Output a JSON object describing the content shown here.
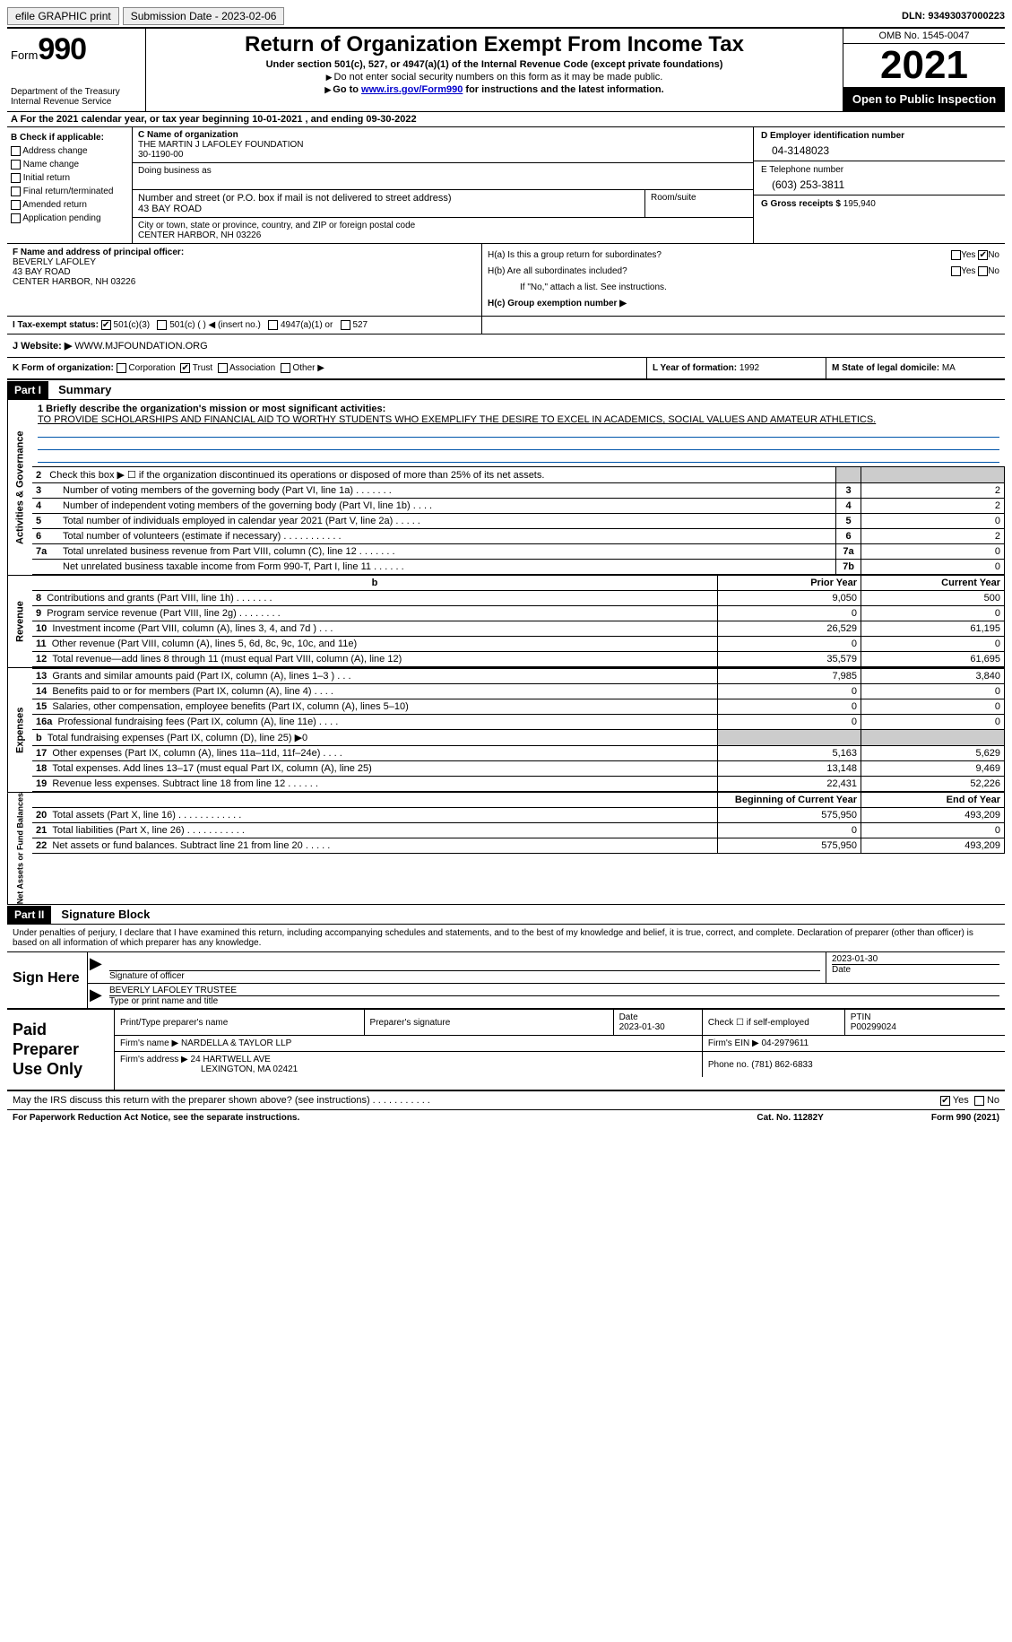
{
  "topbar": {
    "efile_label": "efile GRAPHIC print",
    "submission_label": "Submission Date - 2023-02-06",
    "dln_label": "DLN: 93493037000223"
  },
  "header": {
    "form_label": "Form",
    "form_no": "990",
    "dept": "Department of the Treasury Internal Revenue Service",
    "title": "Return of Organization Exempt From Income Tax",
    "subtitle": "Under section 501(c), 527, or 4947(a)(1) of the Internal Revenue Code (except private foundations)",
    "note1": "Do not enter social security numbers on this form as it may be made public.",
    "note2_a": "Go to ",
    "note2_link": "www.irs.gov/Form990",
    "note2_b": " for instructions and the latest information.",
    "omb": "OMB No. 1545-0047",
    "year": "2021",
    "inspect": "Open to Public Inspection"
  },
  "line_a": "A For the 2021 calendar year, or tax year beginning 10-01-2021    , and ending 09-30-2022",
  "block_b": {
    "title": "B Check if applicable:",
    "items": [
      "Address change",
      "Name change",
      "Initial return",
      "Final return/terminated",
      "Amended return",
      "Application pending"
    ]
  },
  "block_c": {
    "name_lbl": "C Name of organization",
    "name": "THE MARTIN J LAFOLEY FOUNDATION",
    "name2": "30-1190-00",
    "dba_lbl": "Doing business as",
    "addr_lbl": "Number and street (or P.O. box if mail is not delivered to street address)",
    "addr": "43 BAY ROAD",
    "room_lbl": "Room/suite",
    "city_lbl": "City or town, state or province, country, and ZIP or foreign postal code",
    "city": "CENTER HARBOR, NH   03226"
  },
  "block_d": {
    "ein_lbl": "D Employer identification number",
    "ein": "04-3148023",
    "tel_lbl": "E Telephone number",
    "tel": "(603) 253-3811",
    "gross_lbl": "G Gross receipts $",
    "gross": "195,940"
  },
  "block_f": {
    "lbl": "F  Name and address of principal officer:",
    "name": "BEVERLY LAFOLEY",
    "addr1": "43 BAY ROAD",
    "addr2": "CENTER HARBOR, NH  03226"
  },
  "block_h": {
    "ha": "H(a)  Is this a group return for subordinates?",
    "hb": "H(b)  Are all subordinates included?",
    "hb_note": "If \"No,\" attach a list. See instructions.",
    "hc": "H(c)  Group exemption number ▶",
    "yes": "Yes",
    "no": "No"
  },
  "row_i": {
    "lbl": "I    Tax-exempt status:",
    "opts": [
      "501(c)(3)",
      "501(c) (  ) ◀ (insert no.)",
      "4947(a)(1) or",
      "527"
    ]
  },
  "row_j": {
    "lbl": "J   Website: ▶",
    "val": "WWW.MJFOUNDATION.ORG"
  },
  "row_k": {
    "lbl": "K Form of organization:",
    "opts": [
      "Corporation",
      "Trust",
      "Association",
      "Other ▶"
    ],
    "l_lbl": "L Year of formation:",
    "l_val": "1992",
    "m_lbl": "M State of legal domicile:",
    "m_val": "MA"
  },
  "part1": {
    "hdr": "Part I",
    "title": "Summary",
    "side1": "Activities & Governance",
    "side2": "Revenue",
    "side3": "Expenses",
    "side4": "Net Assets or Fund Balances",
    "q1_lbl": "1   Briefly describe the organization's mission or most significant activities:",
    "q1_val": "TO PROVIDE SCHOLARSHIPS AND FINANCIAL AID TO WORTHY STUDENTS WHO EXEMPLIFY THE DESIRE TO EXCEL IN ACADEMICS, SOCIAL VALUES AND AMATEUR ATHLETICS.",
    "q2": "Check this box ▶ ☐  if the organization discontinued its operations or disposed of more than 25% of its net assets.",
    "rows_a": [
      {
        "n": "3",
        "t": "Number of voting members of the governing body (Part VI, line 1a)   .    .    .    .    .    .    .",
        "b": "3",
        "v": "2"
      },
      {
        "n": "4",
        "t": "Number of independent voting members of the governing body (Part VI, line 1b)    .    .    .    .",
        "b": "4",
        "v": "2"
      },
      {
        "n": "5",
        "t": "Total number of individuals employed in calendar year 2021 (Part V, line 2a)    .    .    .    .    .",
        "b": "5",
        "v": "0"
      },
      {
        "n": "6",
        "t": "Total number of volunteers (estimate if necessary)    .    .    .    .    .    .    .    .    .    .    .",
        "b": "6",
        "v": "2"
      },
      {
        "n": "7a",
        "t": "Total unrelated business revenue from Part VIII, column (C), line 12    .    .    .    .    .    .    .",
        "b": "7a",
        "v": "0"
      },
      {
        "n": "",
        "t": "Net unrelated business taxable income from Form 990-T, Part I, line 11    .    .    .    .    .    .",
        "b": "7b",
        "v": "0"
      }
    ],
    "col_prior": "Prior Year",
    "col_curr": "Current Year",
    "rows_b": [
      {
        "n": "8",
        "t": "Contributions and grants (Part VIII, line 1h)    .    .    .    .    .    .    .",
        "p": "9,050",
        "c": "500"
      },
      {
        "n": "9",
        "t": "Program service revenue (Part VIII, line 2g)    .    .    .    .    .    .    .    .",
        "p": "0",
        "c": "0"
      },
      {
        "n": "10",
        "t": "Investment income (Part VIII, column (A), lines 3, 4, and 7d )    .    .    .",
        "p": "26,529",
        "c": "61,195"
      },
      {
        "n": "11",
        "t": "Other revenue (Part VIII, column (A), lines 5, 6d, 8c, 9c, 10c, and 11e)",
        "p": "0",
        "c": "0"
      },
      {
        "n": "12",
        "t": "Total revenue—add lines 8 through 11 (must equal Part VIII, column (A), line 12)",
        "p": "35,579",
        "c": "61,695"
      }
    ],
    "rows_c": [
      {
        "n": "13",
        "t": "Grants and similar amounts paid (Part IX, column (A), lines 1–3 )    .    .    .",
        "p": "7,985",
        "c": "3,840"
      },
      {
        "n": "14",
        "t": "Benefits paid to or for members (Part IX, column (A), line 4)    .    .    .    .",
        "p": "0",
        "c": "0"
      },
      {
        "n": "15",
        "t": "Salaries, other compensation, employee benefits (Part IX, column (A), lines 5–10)",
        "p": "0",
        "c": "0"
      },
      {
        "n": "16a",
        "t": "Professional fundraising fees (Part IX, column (A), line 11e)    .    .    .    .",
        "p": "0",
        "c": "0"
      },
      {
        "n": "b",
        "t": "Total fundraising expenses (Part IX, column (D), line 25) ▶0",
        "p": "",
        "c": "",
        "shade": true
      },
      {
        "n": "17",
        "t": "Other expenses (Part IX, column (A), lines 11a–11d, 11f–24e)    .    .    .    .",
        "p": "5,163",
        "c": "5,629"
      },
      {
        "n": "18",
        "t": "Total expenses. Add lines 13–17 (must equal Part IX, column (A), line 25)",
        "p": "13,148",
        "c": "9,469"
      },
      {
        "n": "19",
        "t": "Revenue less expenses. Subtract line 18 from line 12    .    .    .    .    .    .",
        "p": "22,431",
        "c": "52,226"
      }
    ],
    "col_begin": "Beginning of Current Year",
    "col_end": "End of Year",
    "rows_d": [
      {
        "n": "20",
        "t": "Total assets (Part X, line 16)    .    .    .    .    .    .    .    .    .    .    .    .",
        "p": "575,950",
        "c": "493,209"
      },
      {
        "n": "21",
        "t": "Total liabilities (Part X, line 26)    .    .    .    .    .    .    .    .    .    .    .",
        "p": "0",
        "c": "0"
      },
      {
        "n": "22",
        "t": "Net assets or fund balances. Subtract line 21 from line 20    .    .    .    .    .",
        "p": "575,950",
        "c": "493,209"
      }
    ]
  },
  "part2": {
    "hdr": "Part II",
    "title": "Signature Block",
    "declare": "Under penalties of perjury, I declare that I have examined this return, including accompanying schedules and statements, and to the best of my knowledge and belief, it is true, correct, and complete. Declaration of preparer (other than officer) is based on all information of which preparer has any knowledge.",
    "sign_here": "Sign Here",
    "sig_of_officer": "Signature of officer",
    "sig_date": "2023-01-30",
    "date_lbl": "Date",
    "officer_name": "BEVERLY LAFOLEY  TRUSTEE",
    "type_lbl": "Type or print name and title",
    "paid_lbl": "Paid Preparer Use Only",
    "prep_name_lbl": "Print/Type preparer's name",
    "prep_sig_lbl": "Preparer's signature",
    "prep_date_lbl": "Date",
    "prep_date": "2023-01-30",
    "check_self": "Check ☐ if self-employed",
    "ptin_lbl": "PTIN",
    "ptin": "P00299024",
    "firm_name_lbl": "Firm's name     ▶",
    "firm_name": "NARDELLA & TAYLOR LLP",
    "firm_ein_lbl": "Firm's EIN ▶",
    "firm_ein": "04-2979611",
    "firm_addr_lbl": "Firm's address ▶",
    "firm_addr1": "24 HARTWELL AVE",
    "firm_addr2": "LEXINGTON, MA  02421",
    "phone_lbl": "Phone no.",
    "phone": "(781) 862-6833"
  },
  "footer": {
    "q": "May the IRS discuss this return with the preparer shown above? (see instructions)    .    .    .    .    .    .    .    .    .    .    .",
    "yes": "Yes",
    "no": "No",
    "paperwork": "For Paperwork Reduction Act Notice, see the separate instructions.",
    "cat": "Cat. No. 11282Y",
    "form": "Form 990 (2021)"
  }
}
